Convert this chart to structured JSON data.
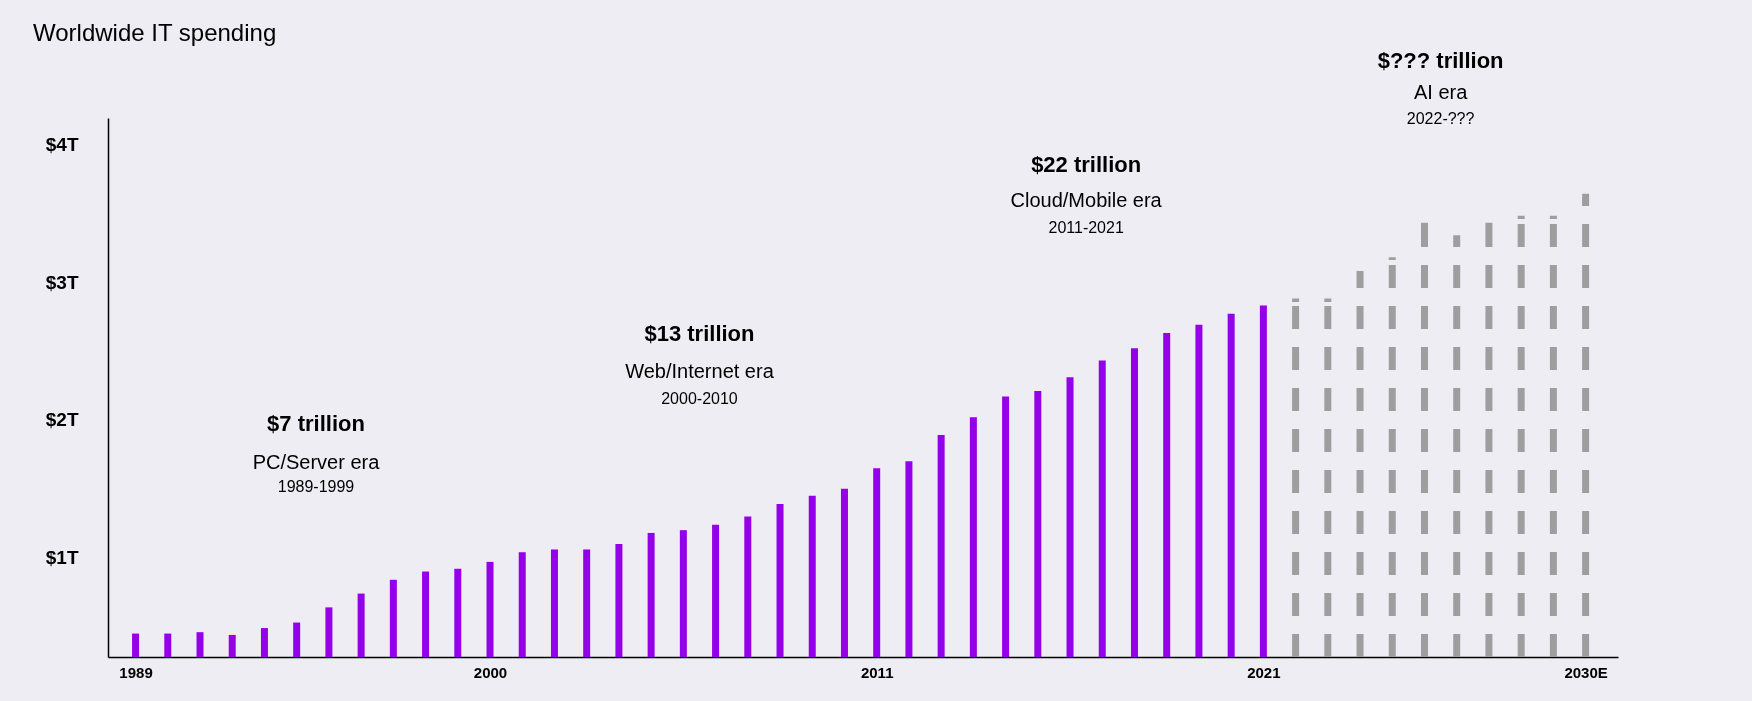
{
  "chart_data": {
    "type": "bar",
    "title": "Worldwide IT spending",
    "categories": [
      "1989",
      null,
      null,
      null,
      null,
      null,
      null,
      null,
      null,
      null,
      null,
      "2000",
      null,
      null,
      null,
      null,
      null,
      null,
      null,
      null,
      null,
      null,
      null,
      "2011",
      null,
      null,
      null,
      null,
      null,
      null,
      null,
      null,
      null,
      null,
      null,
      "2021",
      null,
      null,
      null,
      null,
      null,
      null,
      null,
      null,
      null,
      "2030E"
    ],
    "series": [
      {
        "color": "#9400e8",
        "values": [
          0.45,
          0.45,
          0.46,
          0.44,
          0.49,
          0.53,
          0.64,
          0.74,
          0.84,
          0.9,
          0.92,
          0.97,
          1.04,
          1.06,
          1.06,
          1.1,
          1.18,
          1.2,
          1.24,
          1.3,
          1.39,
          1.45,
          1.5,
          1.65,
          1.7,
          1.89,
          2.02,
          2.17,
          2.21,
          2.31,
          2.43,
          2.52,
          2.63,
          2.69,
          2.77,
          2.83,
          null,
          null,
          null,
          null,
          null,
          null,
          null,
          null,
          null,
          null
        ]
      },
      {
        "color": "#9e9e9e",
        "line_style": "dashed",
        "values": [
          null,
          null,
          null,
          null,
          null,
          null,
          null,
          null,
          null,
          null,
          null,
          null,
          null,
          null,
          null,
          null,
          null,
          null,
          null,
          null,
          null,
          null,
          null,
          null,
          null,
          null,
          null,
          null,
          null,
          null,
          null,
          null,
          null,
          null,
          null,
          null,
          2.88,
          2.88,
          3.08,
          3.18,
          3.43,
          3.34,
          3.43,
          3.48,
          3.48,
          3.64
        ]
      }
    ],
    "ylim": [
      0.28,
      4.19
    ],
    "yticks": [
      {
        "value": 1,
        "label": "$1T"
      },
      {
        "value": 2,
        "label": "$2T"
      },
      {
        "value": 3,
        "label": "$3T"
      },
      {
        "value": 4,
        "label": "$4T"
      }
    ],
    "grid": false,
    "annotations": [
      "$7 trillion",
      "PC/Server era",
      "1989-1999",
      "$13 trillion",
      "Web/Internet era",
      "2000-2010",
      "$22 trillion",
      "Cloud/Mobile era",
      "2011-2021",
      "$??? trillion",
      "AI era",
      "2022-???"
    ]
  }
}
